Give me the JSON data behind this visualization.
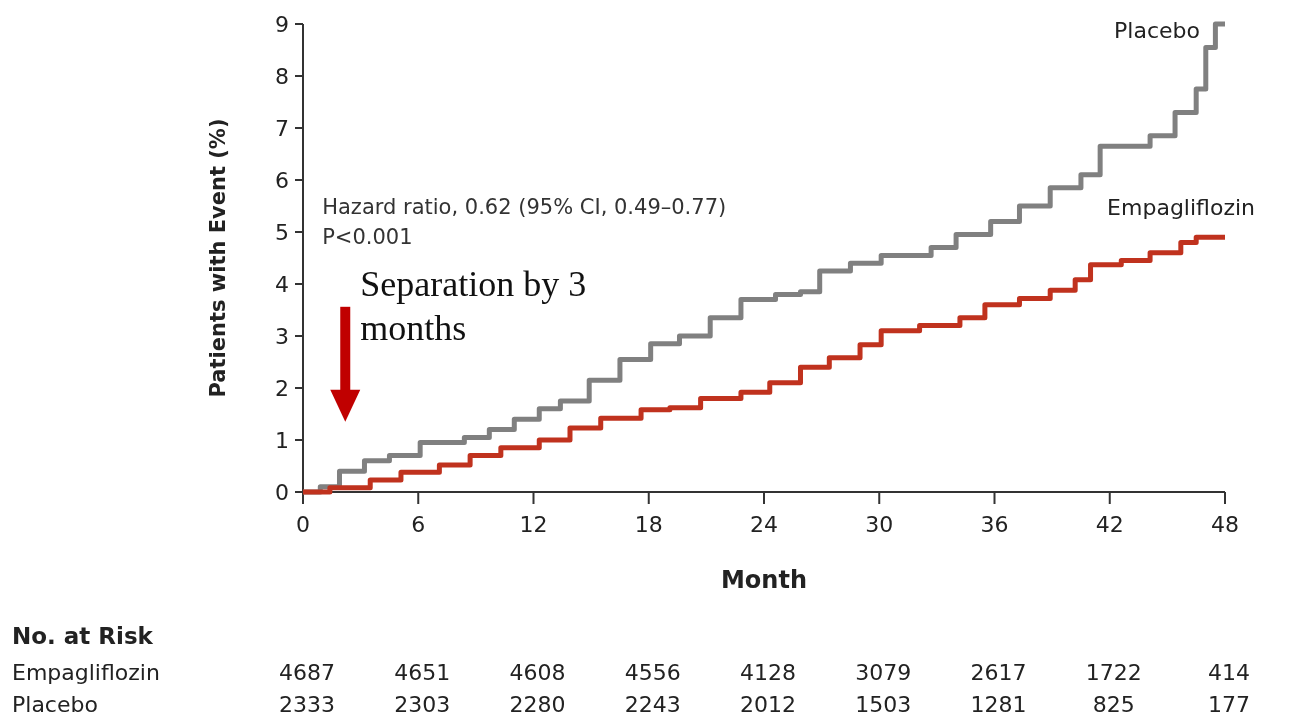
{
  "chart_data": {
    "type": "step",
    "xlabel": "Month",
    "ylabel": "Patients with Event (%)",
    "xlim": [
      0,
      48
    ],
    "ylim": [
      0,
      9
    ],
    "xticks": [
      0,
      6,
      12,
      18,
      24,
      30,
      36,
      42,
      48
    ],
    "yticks": [
      0,
      1,
      2,
      3,
      4,
      5,
      6,
      7,
      8,
      9
    ],
    "grid": false,
    "legend": false,
    "series": [
      {
        "name": "Placebo",
        "color": "#808080",
        "x": [
          0,
          0.9,
          1.9,
          3.2,
          4.5,
          6.1,
          8.4,
          9.7,
          11,
          12.3,
          13.4,
          14.9,
          16.5,
          18.1,
          19.6,
          21.2,
          22.8,
          24.6,
          25.9,
          26.9,
          28.5,
          30.1,
          32.7,
          34,
          35.8,
          37.3,
          38.9,
          40.5,
          41.5,
          44.1,
          45.4,
          46.5,
          47,
          47.5,
          48
        ],
        "values": [
          0,
          0.1,
          0.4,
          0.6,
          0.7,
          0.95,
          1.05,
          1.2,
          1.4,
          1.6,
          1.75,
          2.15,
          2.55,
          2.85,
          3,
          3.35,
          3.7,
          3.8,
          3.85,
          4.25,
          4.4,
          4.55,
          4.7,
          4.95,
          5.2,
          5.5,
          5.85,
          6.1,
          6.65,
          6.85,
          7.3,
          7.75,
          8.55,
          9,
          9
        ]
      },
      {
        "name": "Empagliflozin",
        "color": "#c0321e",
        "x": [
          0,
          1.4,
          3.5,
          5.1,
          7.1,
          8.7,
          10.3,
          12.3,
          13.9,
          15.5,
          17.6,
          19.1,
          20.7,
          22.8,
          24.3,
          25.9,
          27.4,
          29,
          30.1,
          32.1,
          34.2,
          35.5,
          37.3,
          38.9,
          40.2,
          41,
          42.6,
          44.1,
          45.7,
          46.5,
          48
        ],
        "values": [
          0,
          0.08,
          0.23,
          0.38,
          0.52,
          0.7,
          0.85,
          1,
          1.23,
          1.42,
          1.58,
          1.62,
          1.8,
          1.92,
          2.1,
          2.4,
          2.58,
          2.83,
          3.1,
          3.2,
          3.35,
          3.6,
          3.72,
          3.88,
          4.08,
          4.37,
          4.45,
          4.6,
          4.8,
          4.9,
          4.9
        ]
      }
    ],
    "annotations": [
      "Hazard ratio, 0.62 (95% CI, 0.49–0.77)",
      "P<0.001",
      "Separation by 3 months",
      "No. at Risk",
      "Empagliflozin",
      "4687",
      "4651",
      "4608",
      "4556",
      "4128",
      "3079",
      "2617",
      "1722",
      "414",
      "Placebo",
      "2333",
      "2303",
      "2280",
      "2243",
      "2012",
      "1503",
      "1281",
      "825",
      "177"
    ]
  }
}
